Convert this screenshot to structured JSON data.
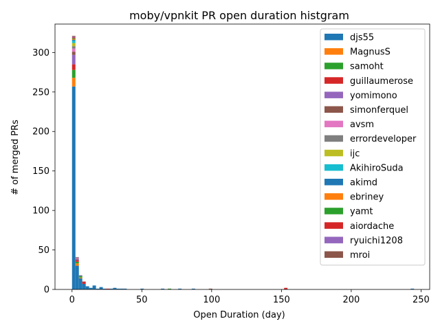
{
  "chart_data": {
    "type": "bar",
    "stacked": true,
    "title": "moby/vpnkit PR open duration histgram",
    "xlabel": "Open Duration (day)",
    "ylabel": "# of merged PRs",
    "xlim": [
      -12.2,
      256.2
    ],
    "ylim": [
      0,
      336
    ],
    "xticks": [
      0,
      50,
      100,
      150,
      200,
      250
    ],
    "yticks": [
      0,
      50,
      100,
      150,
      200,
      250,
      300
    ],
    "bin_width": 2.45,
    "legend_position": "upper right",
    "grid": false,
    "series": [
      {
        "name": "djs55",
        "color": "#1f77b4",
        "bins": [
          [
            0,
            257
          ],
          [
            2.45,
            30
          ],
          [
            4.9,
            14
          ],
          [
            7.35,
            7
          ],
          [
            9.8,
            4
          ],
          [
            12.25,
            2
          ],
          [
            14.7,
            5
          ],
          [
            17.15,
            1
          ],
          [
            19.6,
            3
          ],
          [
            22.05,
            1
          ],
          [
            26.95,
            1
          ],
          [
            29.4,
            2
          ],
          [
            31.85,
            1
          ],
          [
            34.3,
            1
          ],
          [
            36.75,
            1
          ],
          [
            49,
            1
          ],
          [
            63.7,
            1
          ],
          [
            76.0,
            1
          ],
          [
            85.75,
            1
          ],
          [
            242.55,
            1
          ]
        ]
      },
      {
        "name": "MagnusS",
        "color": "#ff7f0e",
        "bins": [
          [
            0,
            11
          ],
          [
            2.45,
            3
          ],
          [
            4.9,
            1
          ]
        ]
      },
      {
        "name": "samoht",
        "color": "#2ca02c",
        "bins": [
          [
            0,
            10
          ],
          [
            2.45,
            2
          ],
          [
            4.9,
            2
          ],
          [
            68.6,
            1
          ]
        ]
      },
      {
        "name": "guillaumerose",
        "color": "#d62728",
        "bins": [
          [
            0,
            7
          ],
          [
            2.45,
            2
          ],
          [
            7.35,
            3
          ],
          [
            24.5,
            1
          ],
          [
            151.9,
            2
          ]
        ]
      },
      {
        "name": "yomimono",
        "color": "#9467bd",
        "bins": [
          [
            0,
            12
          ],
          [
            2.45,
            1
          ],
          [
            4.9,
            1
          ]
        ]
      },
      {
        "name": "simonferquel",
        "color": "#8c564b",
        "bins": [
          [
            0,
            4
          ],
          [
            2.45,
            1
          ],
          [
            98.0,
            1
          ]
        ]
      },
      {
        "name": "avsm",
        "color": "#e377c2",
        "bins": [
          [
            0,
            4
          ],
          [
            2.45,
            1
          ]
        ]
      },
      {
        "name": "errordeveloper",
        "color": "#7f7f7f",
        "bins": [
          [
            0,
            3
          ],
          [
            2.45,
            1
          ]
        ]
      },
      {
        "name": "ijc",
        "color": "#bcbd22",
        "bins": [
          [
            0,
            4
          ]
        ]
      },
      {
        "name": "AkihiroSuda",
        "color": "#17becf",
        "bins": [
          [
            0,
            3
          ]
        ]
      },
      {
        "name": "akimd",
        "color": "#1f77b4",
        "bins": [
          [
            0,
            1
          ]
        ]
      },
      {
        "name": "ebriney",
        "color": "#ff7f0e",
        "bins": [
          [
            0,
            1
          ]
        ]
      },
      {
        "name": "yamt",
        "color": "#2ca02c",
        "bins": [
          [
            0,
            1
          ]
        ]
      },
      {
        "name": "aiordache",
        "color": "#d62728",
        "bins": [
          [
            0,
            1
          ]
        ]
      },
      {
        "name": "ryuichi1208",
        "color": "#9467bd",
        "bins": [
          [
            0,
            1
          ]
        ]
      },
      {
        "name": "mroi",
        "color": "#8c564b",
        "bins": [
          [
            0,
            1
          ]
        ]
      }
    ]
  }
}
